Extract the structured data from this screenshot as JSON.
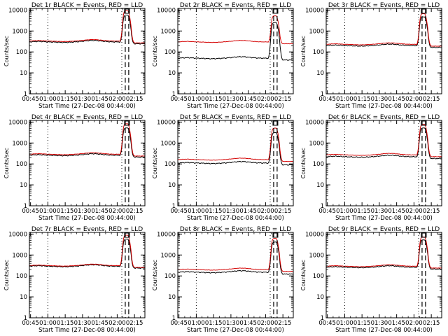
{
  "colors": {
    "events": "#000000",
    "lld": "#d40000",
    "axis": "#000000",
    "background": "#ffffff"
  },
  "chart_data": {
    "type": "line",
    "layout": "3x3 grid",
    "shared": {
      "x_tick_labels": [
        "00:45",
        "01:00",
        "01:15",
        "01:30",
        "01:45",
        "02:00",
        "02:15"
      ],
      "x_tick_minutes": [
        1,
        16,
        31,
        46,
        61,
        76,
        91
      ],
      "xlim_minutes_after_start": [
        0,
        100
      ],
      "xlabel": "Start Time (27-Dec-08 00:44:00)",
      "ylabel": "Counts/sec",
      "y_scale": "log",
      "ylim": [
        1,
        12000
      ],
      "y_tick_labels": [
        "1",
        "10",
        "100",
        "1000",
        "10000"
      ],
      "y_tick_values": [
        1,
        10,
        100,
        1000,
        10000
      ],
      "dotted_vlines_minutes": [
        16,
        80
      ],
      "dashed_vlines_minutes": [
        83,
        86
      ],
      "flare_marker_minutes": 84.5,
      "legend_text": "BLACK = Events, RED = LLD",
      "series_names": [
        "Events",
        "LLD"
      ],
      "series_colors": [
        "#000000",
        "#d40000"
      ]
    },
    "panels": [
      {
        "title": "Det 1r BLACK = Events, RED = LLD",
        "events_base": 300,
        "lld_base": 330,
        "events_peak": 5500,
        "lld_peak": 9000
      },
      {
        "title": "Det 2r BLACK = Events, RED = LLD",
        "events_base": 50,
        "lld_base": 300,
        "events_peak": 2500,
        "lld_peak": 5000
      },
      {
        "title": "Det 3r BLACK = Events, RED = LLD",
        "events_base": 200,
        "lld_base": 230,
        "events_peak": 4500,
        "lld_peak": 6500
      },
      {
        "title": "Det 4r BLACK = Events, RED = LLD",
        "events_base": 260,
        "lld_base": 290,
        "events_peak": 5000,
        "lld_peak": 8000
      },
      {
        "title": "Det 5r BLACK = Events, RED = LLD",
        "events_base": 110,
        "lld_base": 160,
        "events_peak": 3000,
        "lld_peak": 5000
      },
      {
        "title": "Det 6r BLACK = Events, RED = LLD",
        "events_base": 220,
        "lld_base": 270,
        "events_peak": 5000,
        "lld_peak": 7500
      },
      {
        "title": "Det 7r BLACK = Events, RED = LLD",
        "events_base": 290,
        "lld_base": 310,
        "events_peak": 5500,
        "lld_peak": 8500
      },
      {
        "title": "Det 8r BLACK = Events, RED = LLD",
        "events_base": 150,
        "lld_base": 200,
        "events_peak": 4000,
        "lld_peak": 6000
      },
      {
        "title": "Det 9r BLACK = Events, RED = LLD",
        "events_base": 260,
        "lld_base": 290,
        "events_peak": 5000,
        "lld_peak": 7000
      }
    ]
  }
}
